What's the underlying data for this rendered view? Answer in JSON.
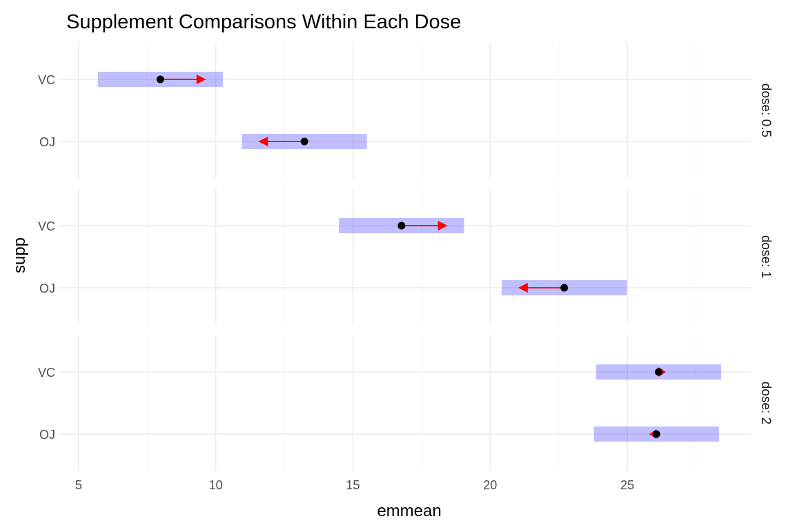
{
  "chart_data": {
    "type": "emmeans-comparison",
    "title": "Supplement Comparisons Within Each Dose",
    "xlabel": "emmean",
    "ylabel": "supp",
    "xlim": [
      4.3,
      29.5
    ],
    "x_major_ticks": [
      5,
      10,
      15,
      20,
      25
    ],
    "x_tick_labels": [
      "5",
      "10",
      "15",
      "20",
      "25"
    ],
    "x_minor_ticks": [
      7.5,
      12.5,
      17.5,
      22.5,
      27.5
    ],
    "categories": [
      "VC",
      "OJ"
    ],
    "grid": true,
    "facet_position": "right",
    "colors": {
      "ci_bar": "#0000ff",
      "ci_bar_opacity": 0.25,
      "comparison_arrow": "#ff0000",
      "point": "#000000"
    },
    "panels": [
      {
        "label": "dose: 0.5",
        "rows": [
          {
            "supp": "VC",
            "emmean": 7.98,
            "lower": 5.7,
            "upper": 10.26,
            "arrow_end": 9.65
          },
          {
            "supp": "OJ",
            "emmean": 13.23,
            "lower": 10.95,
            "upper": 15.51,
            "arrow_end": 11.55
          }
        ]
      },
      {
        "label": "dose: 1",
        "rows": [
          {
            "supp": "VC",
            "emmean": 16.77,
            "lower": 14.49,
            "upper": 19.05,
            "arrow_end": 18.45
          },
          {
            "supp": "OJ",
            "emmean": 22.7,
            "lower": 20.42,
            "upper": 24.98,
            "arrow_end": 21.02
          }
        ]
      },
      {
        "label": "dose: 2",
        "rows": [
          {
            "supp": "VC",
            "emmean": 26.14,
            "lower": 23.86,
            "upper": 28.42,
            "arrow_end": 26.4
          },
          {
            "supp": "OJ",
            "emmean": 26.06,
            "lower": 23.78,
            "upper": 28.34,
            "arrow_end": 25.8
          }
        ]
      }
    ]
  }
}
